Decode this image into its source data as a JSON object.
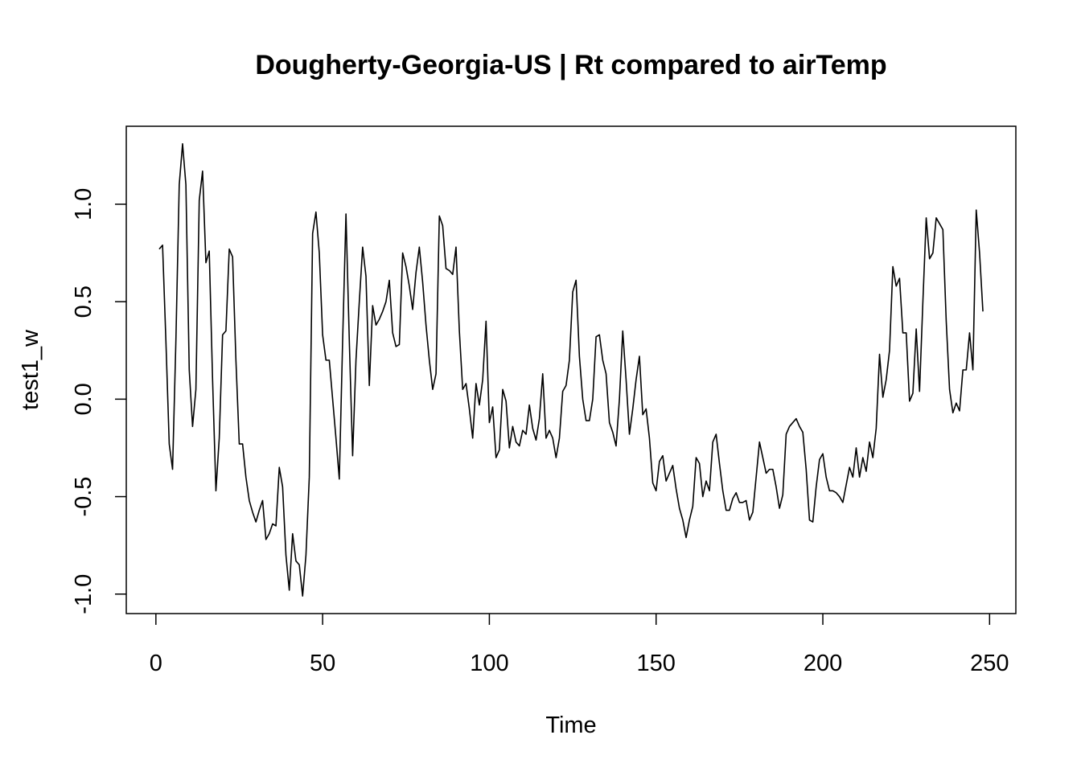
{
  "chart_data": {
    "type": "line",
    "title": "Dougherty-Georgia-US | Rt compared to airTemp",
    "x_label": "Time",
    "y_label": "test1_w",
    "x": [
      1,
      2,
      3,
      4,
      5,
      6,
      7,
      8,
      9,
      10,
      11,
      12,
      13,
      14,
      15,
      16,
      17,
      18,
      19,
      20,
      21,
      22,
      23,
      24,
      25,
      26,
      27,
      28,
      29,
      30,
      31,
      32,
      33,
      34,
      35,
      36,
      37,
      38,
      39,
      40,
      41,
      42,
      43,
      44,
      45,
      46,
      47,
      48,
      49,
      50,
      51,
      52,
      53,
      54,
      55,
      56,
      57,
      58,
      59,
      60,
      61,
      62,
      63,
      64,
      65,
      66,
      67,
      68,
      69,
      70,
      71,
      72,
      73,
      74,
      75,
      76,
      77,
      78,
      79,
      80,
      81,
      82,
      83,
      84,
      85,
      86,
      87,
      88,
      89,
      90,
      91,
      92,
      93,
      94,
      95,
      96,
      97,
      98,
      99,
      100,
      101,
      102,
      103,
      104,
      105,
      106,
      107,
      108,
      109,
      110,
      111,
      112,
      113,
      114,
      115,
      116,
      117,
      118,
      119,
      120,
      121,
      122,
      123,
      124,
      125,
      126,
      127,
      128,
      129,
      130,
      131,
      132,
      133,
      134,
      135,
      136,
      137,
      138,
      139,
      140,
      141,
      142,
      143,
      144,
      145,
      146,
      147,
      148,
      149,
      150,
      151,
      152,
      153,
      154,
      155,
      156,
      157,
      158,
      159,
      160,
      161,
      162,
      163,
      164,
      165,
      166,
      167,
      168,
      169,
      170,
      171,
      172,
      173,
      174,
      175,
      176,
      177,
      178,
      179,
      180,
      181,
      182,
      183,
      184,
      185,
      186,
      187,
      188,
      189,
      190,
      191,
      192,
      193,
      194,
      195,
      196,
      197,
      198,
      199,
      200,
      201,
      202,
      203,
      204,
      205,
      206,
      207,
      208,
      209,
      210,
      211,
      212,
      213,
      214,
      215,
      216,
      217,
      218,
      219,
      220,
      221,
      222,
      223,
      224,
      225,
      226,
      227,
      228,
      229,
      230,
      231,
      232,
      233,
      234,
      235,
      236,
      237,
      238,
      239,
      240,
      241,
      242,
      243,
      244,
      245,
      246,
      247,
      248
    ],
    "series": [
      {
        "color": "#000000",
        "values": [
          0.77,
          0.79,
          0.3,
          -0.23,
          -0.36,
          0.3,
          1.1,
          1.31,
          1.1,
          0.15,
          -0.14,
          0.05,
          1.02,
          1.17,
          0.7,
          0.76,
          0.1,
          -0.47,
          -0.2,
          0.33,
          0.35,
          0.77,
          0.73,
          0.2,
          -0.23,
          -0.23,
          -0.4,
          -0.52,
          -0.58,
          -0.63,
          -0.57,
          -0.52,
          -0.72,
          -0.69,
          -0.64,
          -0.65,
          -0.35,
          -0.45,
          -0.8,
          -0.98,
          -0.69,
          -0.83,
          -0.85,
          -1.01,
          -0.8,
          -0.4,
          0.85,
          0.96,
          0.75,
          0.33,
          0.2,
          0.2,
          0,
          -0.2,
          -0.41,
          0.3,
          0.95,
          0.3,
          -0.29,
          0.2,
          0.5,
          0.78,
          0.63,
          0.07,
          0.48,
          0.38,
          0.41,
          0.45,
          0.5,
          0.61,
          0.34,
          0.27,
          0.28,
          0.75,
          0.68,
          0.58,
          0.46,
          0.65,
          0.78,
          0.6,
          0.38,
          0.2,
          0.05,
          0.13,
          0.94,
          0.89,
          0.67,
          0.66,
          0.64,
          0.78,
          0.35,
          0.05,
          0.08,
          -0.05,
          -0.2,
          0.08,
          -0.03,
          0.1,
          0.4,
          -0.12,
          -0.04,
          -0.3,
          -0.26,
          0.05,
          -0.01,
          -0.25,
          -0.14,
          -0.22,
          -0.24,
          -0.16,
          -0.18,
          -0.03,
          -0.15,
          -0.21,
          -0.1,
          0.13,
          -0.2,
          -0.16,
          -0.2,
          -0.3,
          -0.2,
          0.04,
          0.07,
          0.2,
          0.55,
          0.61,
          0.22,
          0,
          -0.11,
          -0.11,
          0,
          0.32,
          0.33,
          0.2,
          0.13,
          -0.12,
          -0.17,
          -0.24,
          0,
          0.35,
          0.1,
          -0.18,
          -0.05,
          0.1,
          0.22,
          -0.08,
          -0.05,
          -0.2,
          -0.43,
          -0.47,
          -0.32,
          -0.29,
          -0.42,
          -0.38,
          -0.34,
          -0.46,
          -0.56,
          -0.62,
          -0.71,
          -0.62,
          -0.55,
          -0.3,
          -0.33,
          -0.5,
          -0.42,
          -0.47,
          -0.22,
          -0.18,
          -0.33,
          -0.47,
          -0.57,
          -0.57,
          -0.51,
          -0.48,
          -0.53,
          -0.53,
          -0.52,
          -0.62,
          -0.58,
          -0.4,
          -0.22,
          -0.3,
          -0.38,
          -0.36,
          -0.36,
          -0.45,
          -0.56,
          -0.49,
          -0.18,
          -0.14,
          -0.12,
          -0.1,
          -0.14,
          -0.17,
          -0.36,
          -0.62,
          -0.63,
          -0.45,
          -0.31,
          -0.28,
          -0.4,
          -0.47,
          -0.47,
          -0.48,
          -0.5,
          -0.53,
          -0.44,
          -0.35,
          -0.4,
          -0.25,
          -0.4,
          -0.3,
          -0.37,
          -0.22,
          -0.3,
          -0.15,
          0.23,
          0.01,
          0.1,
          0.25,
          0.68,
          0.58,
          0.62,
          0.34,
          0.34,
          -0.01,
          0.03,
          0.36,
          0.04,
          0.5,
          0.93,
          0.72,
          0.75,
          0.93,
          0.9,
          0.87,
          0.4,
          0.05,
          -0.07,
          -0.02,
          -0.06,
          0.15,
          0.15,
          0.34,
          0.15,
          0.97,
          0.75,
          0.45
        ]
      }
    ],
    "xlim": [
      -8.88,
      257.88
    ],
    "xticks": [
      0,
      50,
      100,
      150,
      200,
      250
    ],
    "ylim": [
      -1.1,
      1.4
    ],
    "yticks": [
      {
        "value": -1,
        "label": "-1.0"
      },
      {
        "value": -0.5,
        "label": "-0.5"
      },
      {
        "value": 0,
        "label": "0.0"
      },
      0.5,
      {
        "value": 1,
        "label": "1.0"
      }
    ],
    "grid": false
  }
}
